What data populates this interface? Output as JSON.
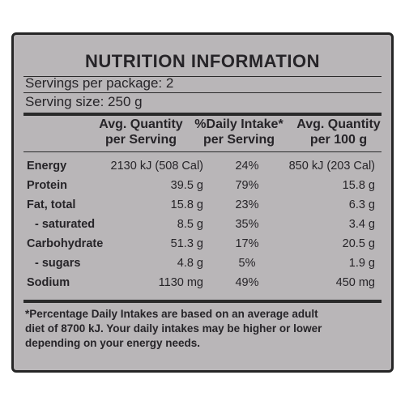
{
  "title": "NUTRITION INFORMATION",
  "servings_per_package": "Servings per package: 2",
  "serving_size": "Serving size: 250 g",
  "headers": {
    "col1": [
      "Avg. Quantity",
      "per Serving"
    ],
    "col2": [
      "%Daily Intake*",
      "per Serving"
    ],
    "col3": [
      "Avg. Quantity",
      "per 100 g"
    ]
  },
  "rows": [
    {
      "name": "Energy",
      "per_serving": "2130 kJ (508 Cal)",
      "daily_intake": "24%",
      "per_100g": "850 kJ (203 Cal)"
    },
    {
      "name": "Protein",
      "per_serving": "39.5 g",
      "daily_intake": "79%",
      "per_100g": "15.8 g"
    },
    {
      "name": "Fat, total",
      "per_serving": "15.8 g",
      "daily_intake": "23%",
      "per_100g": "6.3 g"
    },
    {
      "name": "- saturated",
      "per_serving": "8.5 g",
      "daily_intake": "35%",
      "per_100g": "3.4 g"
    },
    {
      "name": "Carbohydrate",
      "per_serving": "51.3 g",
      "daily_intake": "17%",
      "per_100g": "20.5 g"
    },
    {
      "name": "- sugars",
      "per_serving": "4.8 g",
      "daily_intake": "5%",
      "per_100g": "1.9 g"
    },
    {
      "name": "Sodium",
      "per_serving": "1130 mg",
      "daily_intake": "49%",
      "per_100g": "450 mg"
    }
  ],
  "footnote": [
    "*Percentage Daily Intakes are based on an average adult",
    "diet of 8700 kJ. Your daily intakes may be higher or lower",
    "depending on your energy needs."
  ],
  "colors": {
    "background": "#b9b6b8",
    "text": "#262428",
    "border": "#262626"
  }
}
